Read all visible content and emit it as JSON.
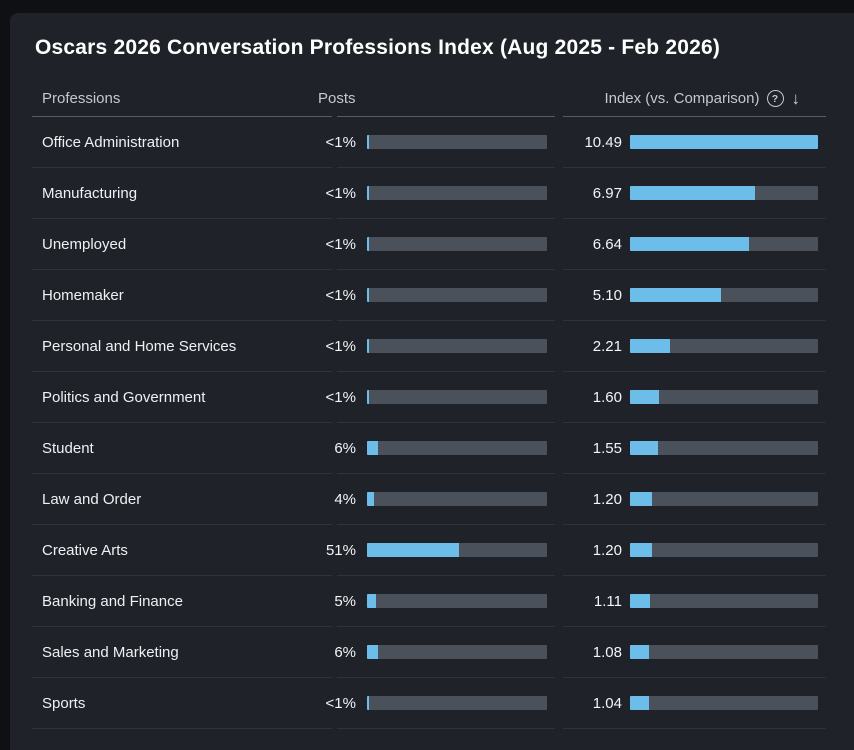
{
  "title": "Oscars 2026 Conversation Professions Index (Aug 2025 - Feb 2026)",
  "columns": {
    "professions": "Professions",
    "posts": "Posts",
    "index": "Index (vs. Comparison)"
  },
  "icons": {
    "help": "?",
    "sort_desc": "↓"
  },
  "colors": {
    "page_bg": "#0e1013",
    "card_bg": "#1f2329",
    "bar_fill": "#6cbde9",
    "bar_track": "#4b515b",
    "header_text": "#c3c8cd",
    "row_text": "#eef0f2"
  },
  "chart_data": {
    "type": "bar",
    "title": "Oscars 2026 Conversation Professions Index (Aug 2025 - Feb 2026)",
    "categories": [
      "Office Administration",
      "Manufacturing",
      "Unemployed",
      "Homemaker",
      "Personal and Home Services",
      "Politics and Government",
      "Student",
      "Law and Order",
      "Creative Arts",
      "Banking and Finance",
      "Sales and Marketing",
      "Sports"
    ],
    "series": [
      {
        "name": "Posts",
        "labels": [
          "<1%",
          "<1%",
          "<1%",
          "<1%",
          "<1%",
          "<1%",
          "6%",
          "4%",
          "51%",
          "5%",
          "6%",
          "<1%"
        ],
        "values": [
          0.5,
          0.5,
          0.5,
          0.5,
          0.5,
          0.5,
          6,
          4,
          51,
          5,
          6,
          0.5
        ],
        "max": 100,
        "unit": "%"
      },
      {
        "name": "Index (vs. Comparison)",
        "labels": [
          "10.49",
          "6.97",
          "6.64",
          "5.10",
          "2.21",
          "1.60",
          "1.55",
          "1.20",
          "1.20",
          "1.11",
          "1.08",
          "1.04"
        ],
        "values": [
          10.49,
          6.97,
          6.64,
          5.1,
          2.21,
          1.6,
          1.55,
          1.2,
          1.2,
          1.11,
          1.08,
          1.04
        ],
        "max": 10.49
      }
    ],
    "legend": "none",
    "grid": false,
    "sort": "index descending"
  }
}
